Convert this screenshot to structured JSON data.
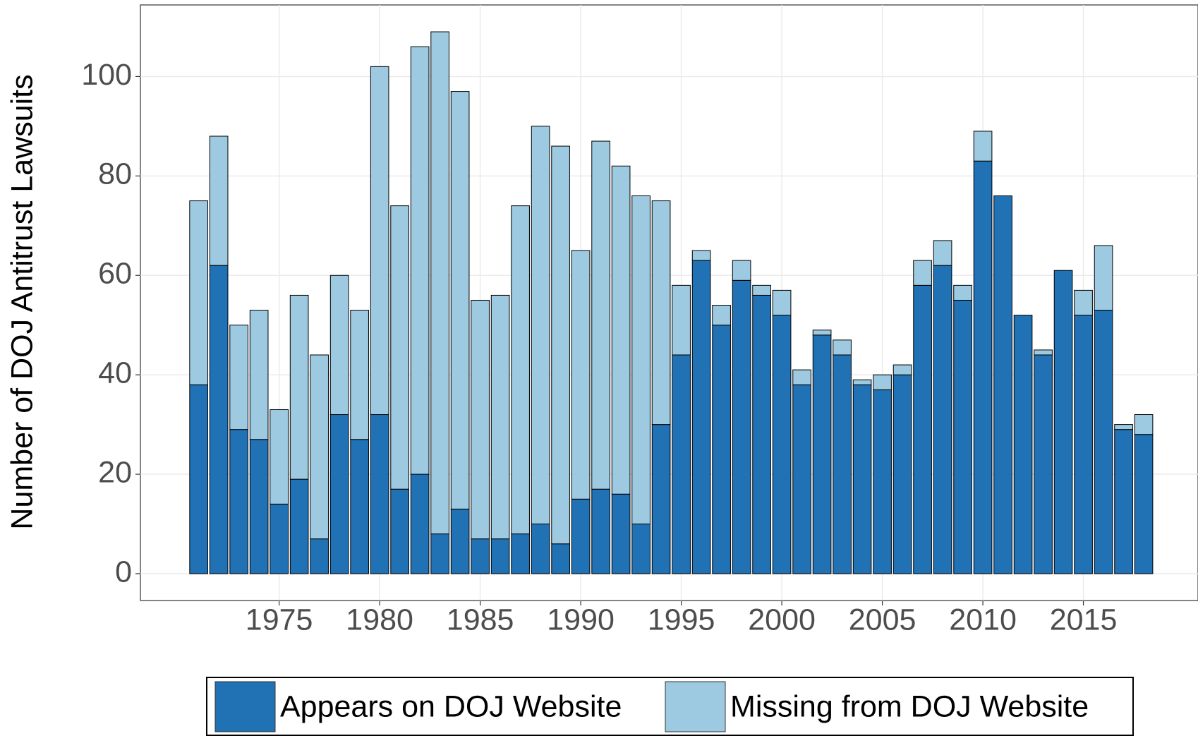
{
  "chart_data": {
    "type": "bar",
    "stacked": true,
    "y_label": "Number of DOJ Antitrust Lawsuits",
    "x": [
      1971,
      1972,
      1973,
      1974,
      1975,
      1976,
      1977,
      1978,
      1979,
      1980,
      1981,
      1982,
      1983,
      1984,
      1985,
      1986,
      1987,
      1988,
      1989,
      1990,
      1991,
      1992,
      1993,
      1994,
      1995,
      1996,
      1997,
      1998,
      1999,
      2000,
      2001,
      2002,
      2003,
      2004,
      2005,
      2006,
      2007,
      2008,
      2009,
      2010,
      2011,
      2012,
      2013,
      2014,
      2015,
      2016,
      2017,
      2018
    ],
    "series": [
      {
        "name": "Appears on DOJ Website",
        "color": "#2171b5",
        "values": [
          38,
          62,
          29,
          27,
          14,
          19,
          7,
          32,
          27,
          32,
          17,
          20,
          8,
          13,
          7,
          7,
          8,
          10,
          6,
          15,
          17,
          16,
          10,
          30,
          44,
          63,
          50,
          59,
          56,
          52,
          38,
          48,
          44,
          38,
          37,
          40,
          58,
          62,
          55,
          83,
          76,
          52,
          44,
          61,
          52,
          53,
          29,
          28
        ]
      },
      {
        "name": "Missing from DOJ Website",
        "color": "#9ecae1",
        "values": [
          37,
          26,
          21,
          26,
          19,
          37,
          37,
          28,
          26,
          70,
          57,
          86,
          101,
          84,
          48,
          49,
          66,
          80,
          80,
          50,
          70,
          66,
          66,
          45,
          14,
          2,
          4,
          4,
          2,
          5,
          3,
          1,
          3,
          1,
          3,
          2,
          5,
          5,
          3,
          6,
          0,
          0,
          1,
          0,
          5,
          13,
          1,
          4
        ]
      }
    ],
    "xlim": [
      1968.1,
      2020.7
    ],
    "xticks": [
      1975,
      1980,
      1985,
      1990,
      1995,
      2000,
      2005,
      2010,
      2015
    ],
    "ylim": [
      -5.4,
      114.4
    ],
    "yticks": [
      0,
      20,
      40,
      60,
      80,
      100
    ],
    "grid": true,
    "legend": "bottom"
  }
}
